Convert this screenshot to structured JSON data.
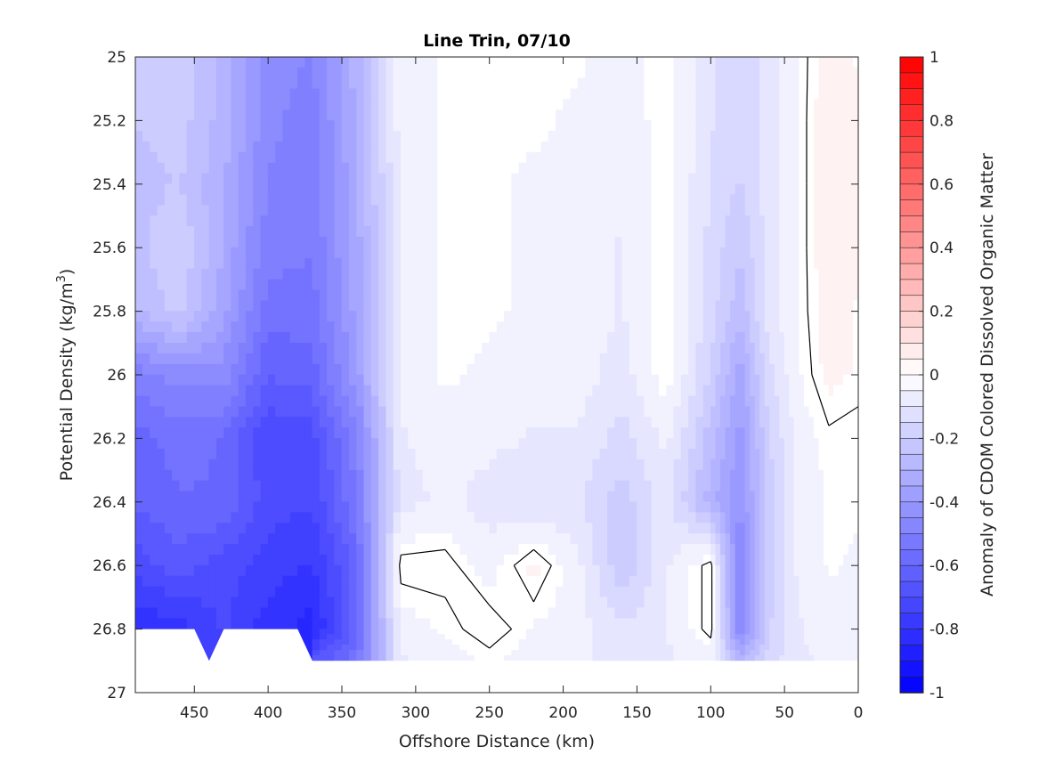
{
  "chart_data": {
    "type": "heatmap",
    "title": "Line Trin, 07/10",
    "xlabel": "Offshore Distance (km)",
    "ylabel_main": "Potential Density (kg/m",
    "ylabel_sup": "3",
    "ylabel_close": ")",
    "colorbar_label": "Anomaly of CDOM Colored Dissolved Organic Matter",
    "xlim": [
      490,
      0
    ],
    "ylim": [
      25,
      27
    ],
    "x_reversed": true,
    "y_reversed": true,
    "xticks": [
      450,
      400,
      350,
      300,
      250,
      200,
      150,
      100,
      50,
      0
    ],
    "xtick_labels": [
      "450",
      "400",
      "350",
      "300",
      "250",
      "200",
      "150",
      "100",
      "50",
      "0"
    ],
    "yticks": [
      25,
      25.2,
      25.4,
      25.6,
      25.8,
      26,
      26.2,
      26.4,
      26.6,
      26.8,
      27
    ],
    "ytick_labels": [
      "25",
      "25.2",
      "25.4",
      "25.6",
      "25.8",
      "26",
      "26.2",
      "26.4",
      "26.6",
      "26.8",
      "27"
    ],
    "clim": [
      -1,
      1
    ],
    "cticks": [
      1,
      0.8,
      0.6,
      0.4,
      0.2,
      0,
      -0.2,
      -0.4,
      -0.6,
      -0.8,
      -1
    ],
    "ctick_labels": [
      "1",
      "0.8",
      "0.6",
      "0.4",
      "0.2",
      "0",
      "-0.2",
      "-0.4",
      "-0.6",
      "-0.8",
      "-1"
    ],
    "colormap": "blue-white-red",
    "color_negative": "#0000ff",
    "color_zero": "#ffffff",
    "color_positive": "#ff0000",
    "contour_level": 0,
    "grid": false,
    "x": [
      490,
      460,
      430,
      400,
      370,
      340,
      310,
      280,
      250,
      220,
      190,
      160,
      130,
      100,
      80,
      60,
      40,
      20,
      0
    ],
    "y": [
      25,
      25.2,
      25.4,
      25.6,
      25.8,
      26,
      26.2,
      26.4,
      26.6,
      26.8,
      26.9
    ],
    "z": [
      [
        -0.2,
        -0.18,
        -0.3,
        -0.45,
        -0.48,
        -0.3,
        -0.05,
        -0.02,
        -0.02,
        -0.02,
        -0.02,
        -0.05,
        0.0,
        -0.12,
        -0.18,
        -0.1,
        -0.02,
        0.05,
        0.02
      ],
      [
        -0.22,
        -0.2,
        -0.3,
        -0.46,
        -0.5,
        -0.32,
        -0.05,
        -0.02,
        -0.02,
        -0.02,
        -0.03,
        -0.06,
        0.0,
        -0.12,
        -0.16,
        -0.1,
        -0.02,
        0.06,
        0.03
      ],
      [
        -0.25,
        -0.22,
        -0.32,
        -0.48,
        -0.5,
        -0.34,
        -0.06,
        -0.02,
        -0.02,
        -0.03,
        -0.04,
        -0.07,
        0.0,
        -0.13,
        -0.18,
        -0.1,
        -0.02,
        0.06,
        0.04
      ],
      [
        -0.24,
        -0.18,
        -0.33,
        -0.5,
        -0.52,
        -0.35,
        -0.06,
        -0.02,
        -0.02,
        -0.03,
        -0.04,
        -0.08,
        0.0,
        -0.14,
        -0.22,
        -0.1,
        -0.02,
        0.06,
        0.03
      ],
      [
        -0.28,
        -0.2,
        -0.36,
        -0.55,
        -0.55,
        -0.36,
        -0.05,
        -0.02,
        -0.02,
        -0.03,
        -0.04,
        -0.08,
        0.0,
        -0.15,
        -0.26,
        -0.1,
        -0.02,
        0.05,
        0.02
      ],
      [
        -0.5,
        -0.45,
        -0.45,
        -0.62,
        -0.6,
        -0.4,
        -0.05,
        -0.02,
        -0.03,
        -0.05,
        -0.05,
        -0.1,
        0.0,
        -0.18,
        -0.35,
        -0.14,
        -0.03,
        0.04,
        0.02
      ],
      [
        -0.6,
        -0.55,
        -0.58,
        -0.72,
        -0.7,
        -0.5,
        -0.08,
        -0.05,
        -0.06,
        -0.08,
        -0.08,
        -0.15,
        -0.06,
        -0.25,
        -0.4,
        -0.18,
        -0.05,
        -0.01,
        -0.02
      ],
      [
        -0.62,
        -0.58,
        -0.58,
        -0.7,
        -0.72,
        -0.52,
        -0.1,
        -0.06,
        -0.1,
        -0.12,
        -0.12,
        -0.2,
        -0.1,
        -0.3,
        -0.42,
        -0.2,
        -0.06,
        -0.02,
        -0.02
      ],
      [
        -0.7,
        -0.65,
        -0.7,
        -0.75,
        -0.78,
        -0.6,
        0.02,
        0.02,
        -0.05,
        0.04,
        -0.06,
        -0.22,
        -0.08,
        0.02,
        -0.5,
        -0.2,
        -0.06,
        -0.02,
        -0.03
      ],
      [
        -0.82,
        -0.8,
        -0.72,
        -0.8,
        -0.85,
        -0.6,
        -0.05,
        -0.02,
        0.03,
        -0.03,
        -0.05,
        -0.12,
        -0.08,
        0.02,
        -0.48,
        -0.18,
        -0.08,
        -0.05,
        -0.05
      ],
      [
        null,
        null,
        null,
        null,
        null,
        -0.55,
        -0.08,
        -0.05,
        -0.02,
        -0.05,
        -0.06,
        -0.1,
        -0.08,
        -0.05,
        -0.3,
        -0.15,
        -0.08,
        null,
        null
      ]
    ],
    "bottom_profile": [
      [
        490,
        26.8
      ],
      [
        450,
        26.8
      ],
      [
        440,
        26.9
      ],
      [
        430,
        26.8
      ],
      [
        380,
        26.8
      ],
      [
        370,
        26.9
      ],
      [
        340,
        26.9
      ],
      [
        0,
        26.9
      ]
    ]
  }
}
